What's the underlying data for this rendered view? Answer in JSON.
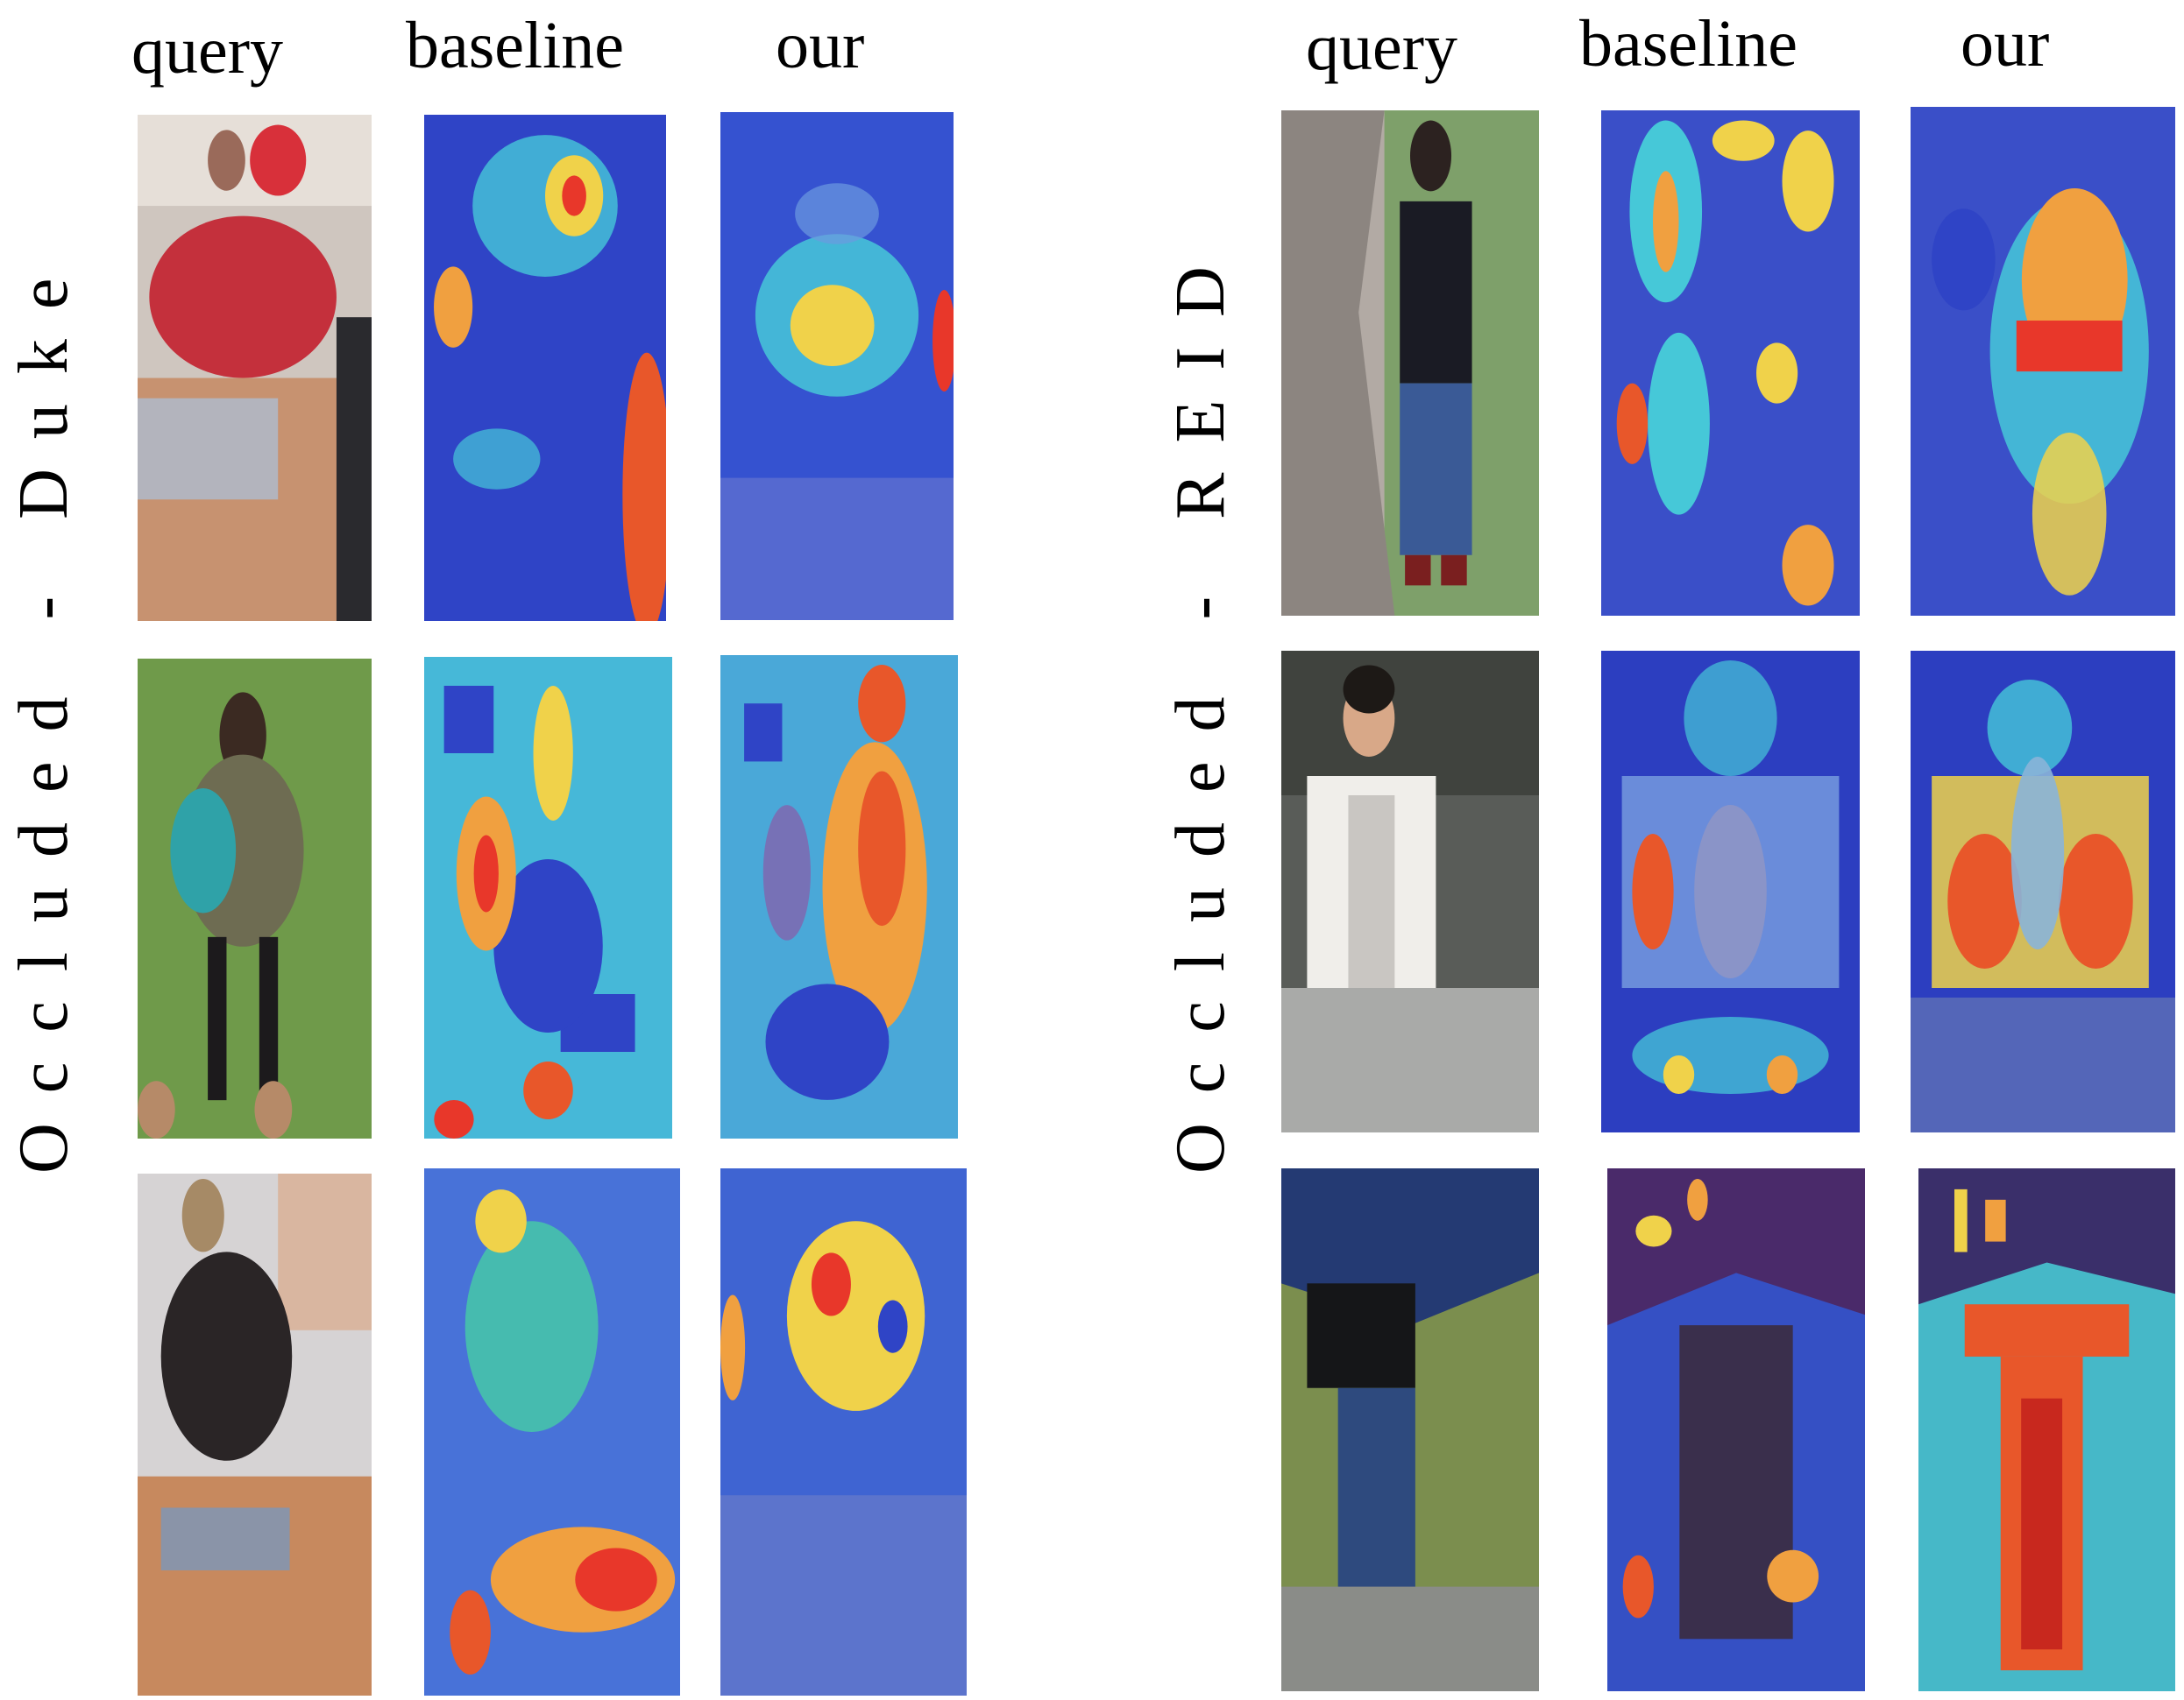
{
  "left_block": {
    "dataset_label": "Occluded - Duke",
    "columns": [
      "query",
      "baseline",
      "our"
    ]
  },
  "right_block": {
    "dataset_label": "Occluded - REID",
    "columns": [
      "query",
      "baseline",
      "our"
    ]
  },
  "colors": {
    "heat_low": "#2a3fc8",
    "heat_mid": "#46c8d8",
    "heat_warm": "#f0d24a",
    "heat_high": "#e8372a",
    "photo_grass": "#6f9a4a",
    "photo_red_coat": "#d8303a",
    "photo_car": "#c79270",
    "photo_white_jacket": "#f0eeea",
    "photo_umbrella": "#243a73"
  }
}
